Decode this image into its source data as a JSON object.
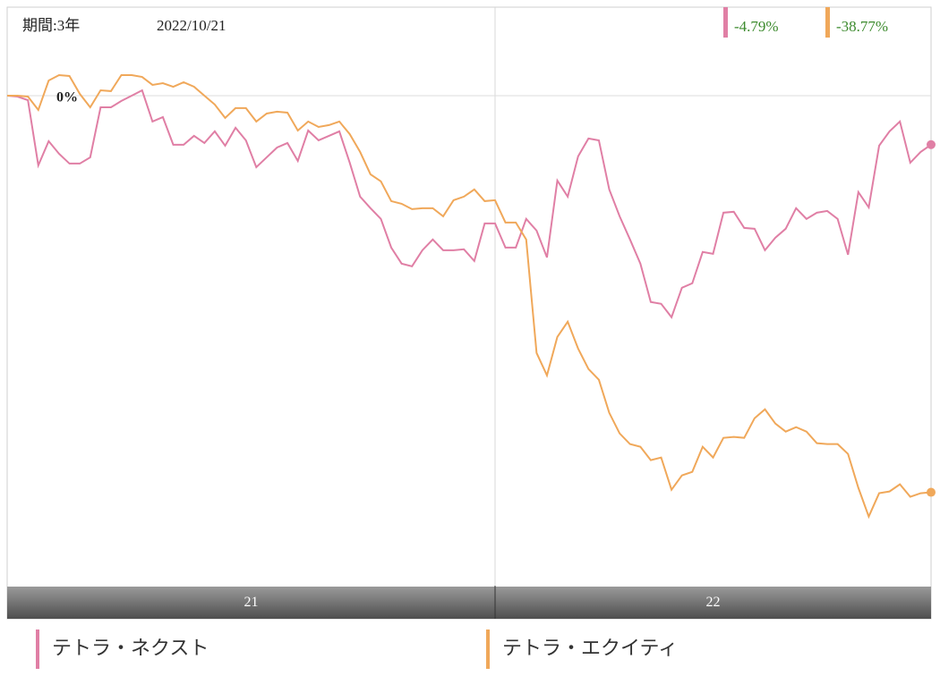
{
  "chart_data": {
    "type": "line",
    "period": "期間:3年",
    "date": "2022/10/21",
    "ylim": [
      -47.9,
      8.65
    ],
    "yticks": [
      {
        "value": 0,
        "label": "0%"
      }
    ],
    "xlim": [
      0,
      89
    ],
    "xbands": [
      {
        "start": 0,
        "label": "21"
      },
      {
        "start": 47,
        "label": "22"
      }
    ],
    "series": [
      {
        "name": "テトラ・ネクスト",
        "color": "#e07fa5",
        "return": -4.79,
        "return_label": "-4.79%",
        "values": [
          0,
          -0.09,
          -0.44,
          -6.81,
          -4.45,
          -5.68,
          -6.64,
          -6.64,
          -6.03,
          -1.14,
          -1.14,
          -0.52,
          0,
          0.52,
          -2.53,
          -2.1,
          -4.8,
          -4.8,
          -3.93,
          -4.63,
          -3.49,
          -4.89,
          -3.14,
          -4.37,
          -6.99,
          -6.03,
          -5.07,
          -4.63,
          -6.38,
          -3.41,
          -4.37,
          -3.93,
          -3.49,
          -6.55,
          -9.87,
          -11,
          -12.05,
          -14.85,
          -16.42,
          -16.68,
          -15.11,
          -14.06,
          -15.11,
          -15.11,
          -15.02,
          -16.16,
          -12.49,
          -12.49,
          -14.85,
          -14.85,
          -12.05,
          -13.19,
          -15.81,
          -8.3,
          -9.87,
          -5.94,
          -4.19,
          -4.37,
          -9.17,
          -11.79,
          -14.06,
          -16.42,
          -20.17,
          -20.35,
          -21.66,
          -18.78,
          -18.34,
          -15.28,
          -15.46,
          -11.44,
          -11.35,
          -12.93,
          -13.01,
          -15.11,
          -13.89,
          -13.01,
          -11,
          -12.05,
          -11.44,
          -11.27,
          -12.05,
          -15.55,
          -9.43,
          -10.92,
          -4.89,
          -3.49,
          -2.53,
          -6.55,
          -5.5,
          -4.79
        ]
      },
      {
        "name": "テトラ・エクイティ",
        "color": "#f0a85a",
        "return": -38.77,
        "return_label": "-38.77%",
        "values": [
          0,
          0,
          -0.09,
          -1.4,
          1.48,
          2.01,
          1.92,
          0.17,
          -1.14,
          0.52,
          0.44,
          2.01,
          2.01,
          1.83,
          1.05,
          1.22,
          0.87,
          1.31,
          0.87,
          0,
          -0.87,
          -2.18,
          -1.22,
          -1.22,
          -2.53,
          -1.75,
          -1.57,
          -1.66,
          -3.41,
          -2.53,
          -3.06,
          -2.88,
          -2.53,
          -3.76,
          -5.5,
          -7.69,
          -8.38,
          -10.31,
          -10.57,
          -11.09,
          -11,
          -11,
          -11.79,
          -10.22,
          -9.87,
          -9.17,
          -10.31,
          -10.22,
          -12.4,
          -12.4,
          -14.06,
          -25.15,
          -27.34,
          -23.58,
          -22.1,
          -24.72,
          -26.72,
          -27.77,
          -31,
          -33.01,
          -34.06,
          -34.32,
          -35.63,
          -35.37,
          -38.52,
          -37.12,
          -36.77,
          -34.32,
          -35.37,
          -33.45,
          -33.36,
          -33.45,
          -31.53,
          -30.66,
          -32.05,
          -32.84,
          -32.4,
          -32.84,
          -33.97,
          -34.06,
          -34.06,
          -35.02,
          -38.34,
          -41.14,
          -38.86,
          -38.69,
          -37.99,
          -39.21,
          -38.86,
          -38.77
        ]
      }
    ]
  }
}
